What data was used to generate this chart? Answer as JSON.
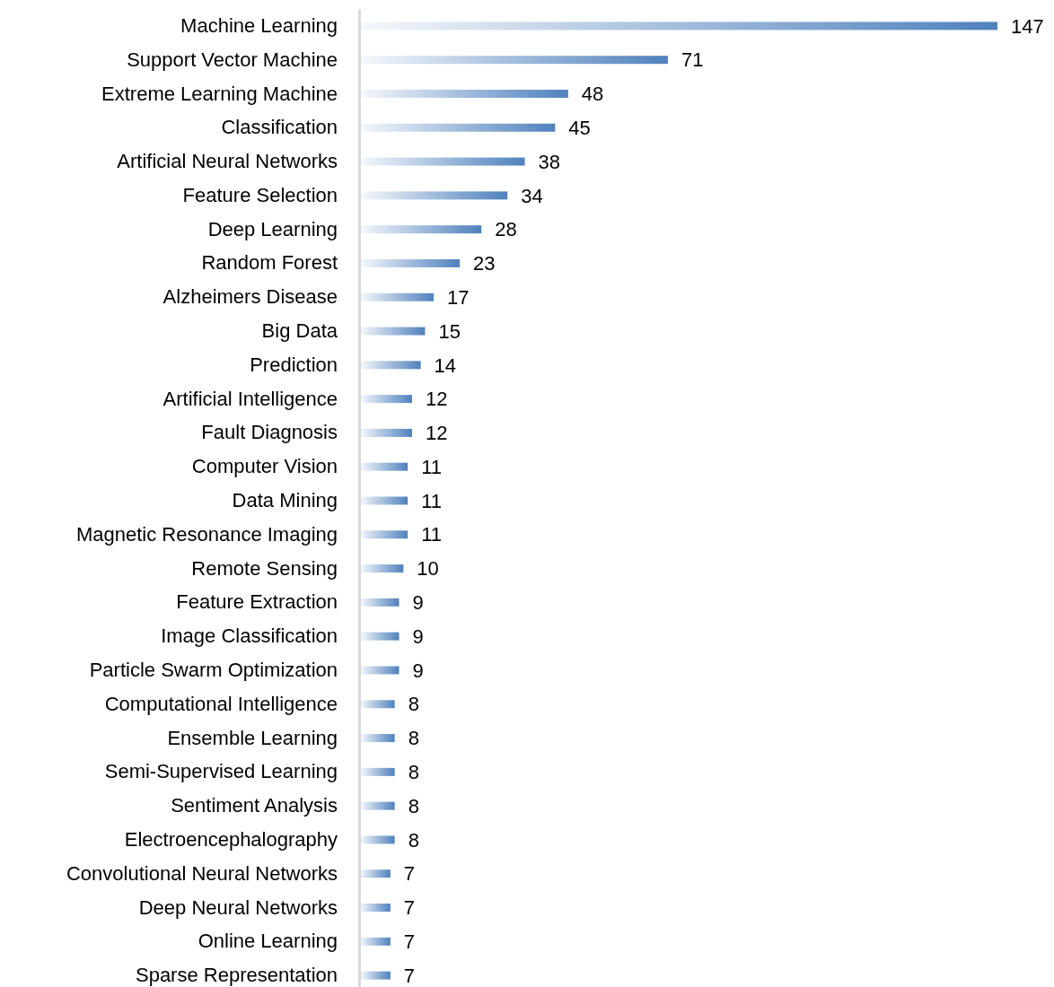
{
  "chart_data": {
    "type": "bar",
    "orientation": "horizontal",
    "data_labels": true,
    "color": "#4f81bd",
    "categories": [
      "Machine Learning",
      "Support Vector Machine",
      "Extreme Learning Machine",
      "Classification",
      "Artificial Neural Networks",
      "Feature Selection",
      "Deep Learning",
      "Random Forest",
      "Alzheimers Disease",
      "Big Data",
      "Prediction",
      "Artificial Intelligence",
      "Fault Diagnosis",
      "Computer Vision",
      "Data Mining",
      "Magnetic Resonance Imaging",
      "Remote Sensing",
      "Feature Extraction",
      "Image Classification",
      "Particle Swarm Optimization",
      "Computational Intelligence",
      "Ensemble Learning",
      "Semi-Supervised Learning",
      "Sentiment Analysis",
      "Electroencephalography",
      "Convolutional Neural Networks",
      "Deep Neural Networks",
      "Online Learning",
      "Sparse Representation"
    ],
    "values": [
      147,
      71,
      48,
      45,
      38,
      34,
      28,
      23,
      17,
      15,
      14,
      12,
      12,
      11,
      11,
      11,
      10,
      9,
      9,
      9,
      8,
      8,
      8,
      8,
      8,
      7,
      7,
      7,
      7
    ]
  }
}
